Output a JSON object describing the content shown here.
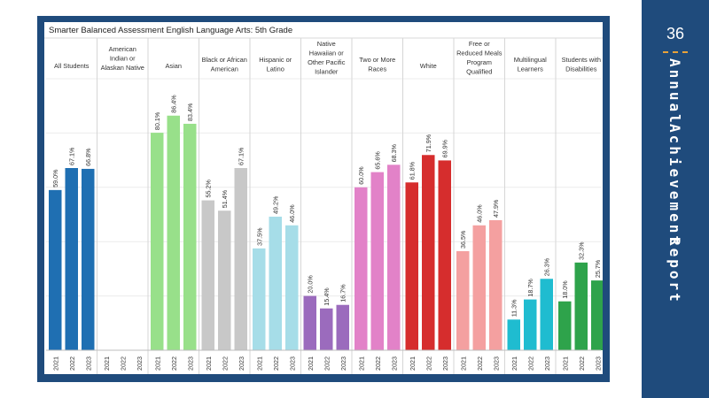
{
  "page": {
    "number": "36",
    "side_words": [
      "Annual",
      "Achievement",
      "Report"
    ]
  },
  "chart_data": {
    "type": "bar",
    "title": "Smarter Balanced Assessment English Language Arts: 5th Grade",
    "ylim": [
      0,
      100
    ],
    "grid": true,
    "years": [
      "2021",
      "2022",
      "2023"
    ],
    "groups": [
      {
        "label": [
          "All Students"
        ],
        "color": "#1f6fb2",
        "values": [
          59.0,
          67.1,
          66.8
        ],
        "labels": [
          "59.0%",
          "67.1%",
          "66.8%"
        ]
      },
      {
        "label": [
          "American",
          "Indian or",
          "Alaskan Native"
        ],
        "color": "#1f6fb2",
        "values": [
          null,
          null,
          null
        ],
        "labels": [
          "",
          "",
          ""
        ]
      },
      {
        "label": [
          "Asian"
        ],
        "color": "#98e08a",
        "values": [
          80.1,
          86.4,
          83.4
        ],
        "labels": [
          "80.1%",
          "86.4%",
          "83.4%"
        ]
      },
      {
        "label": [
          "Black or African",
          "American"
        ],
        "color": "#c8c8c8",
        "values": [
          55.2,
          51.4,
          67.1
        ],
        "labels": [
          "55.2%",
          "51.4%",
          "67.1%"
        ]
      },
      {
        "label": [
          "Hispanic or",
          "Latino"
        ],
        "color": "#a6dde8",
        "values": [
          37.5,
          49.2,
          46.0
        ],
        "labels": [
          "37.5%",
          "49.2%",
          "46.0%"
        ]
      },
      {
        "label": [
          "Native",
          "Hawaiian or",
          "Other Pacific",
          "Islander"
        ],
        "color": "#9b6bbd",
        "values": [
          20.0,
          15.4,
          16.7
        ],
        "labels": [
          "20.0%",
          "15.4%",
          "16.7%"
        ]
      },
      {
        "label": [
          "Two or More",
          "Races"
        ],
        "color": "#e282c8",
        "values": [
          60.0,
          65.6,
          68.3
        ],
        "labels": [
          "60.0%",
          "65.6%",
          "68.3%"
        ]
      },
      {
        "label": [
          "White"
        ],
        "color": "#d62d2d",
        "values": [
          61.8,
          71.9,
          69.9
        ],
        "labels": [
          "61.8%",
          "71.9%",
          "69.9%"
        ]
      },
      {
        "label": [
          "Free or",
          "Reduced Meals",
          "Program",
          "Qualified"
        ],
        "color": "#f4a0a0",
        "values": [
          36.5,
          46.0,
          47.9
        ],
        "labels": [
          "36.5%",
          "46.0%",
          "47.9%"
        ]
      },
      {
        "label": [
          "Multilingual",
          "Learners"
        ],
        "color": "#1fbcd0",
        "values": [
          11.3,
          18.7,
          26.3
        ],
        "labels": [
          "11.3%",
          "18.7%",
          "26.3%"
        ]
      },
      {
        "label": [
          "Students with",
          "Disabilities"
        ],
        "color": "#2ea34b",
        "values": [
          18.0,
          32.3,
          25.7
        ],
        "labels": [
          "18.0%",
          "32.3%",
          "25.7%"
        ]
      }
    ]
  }
}
